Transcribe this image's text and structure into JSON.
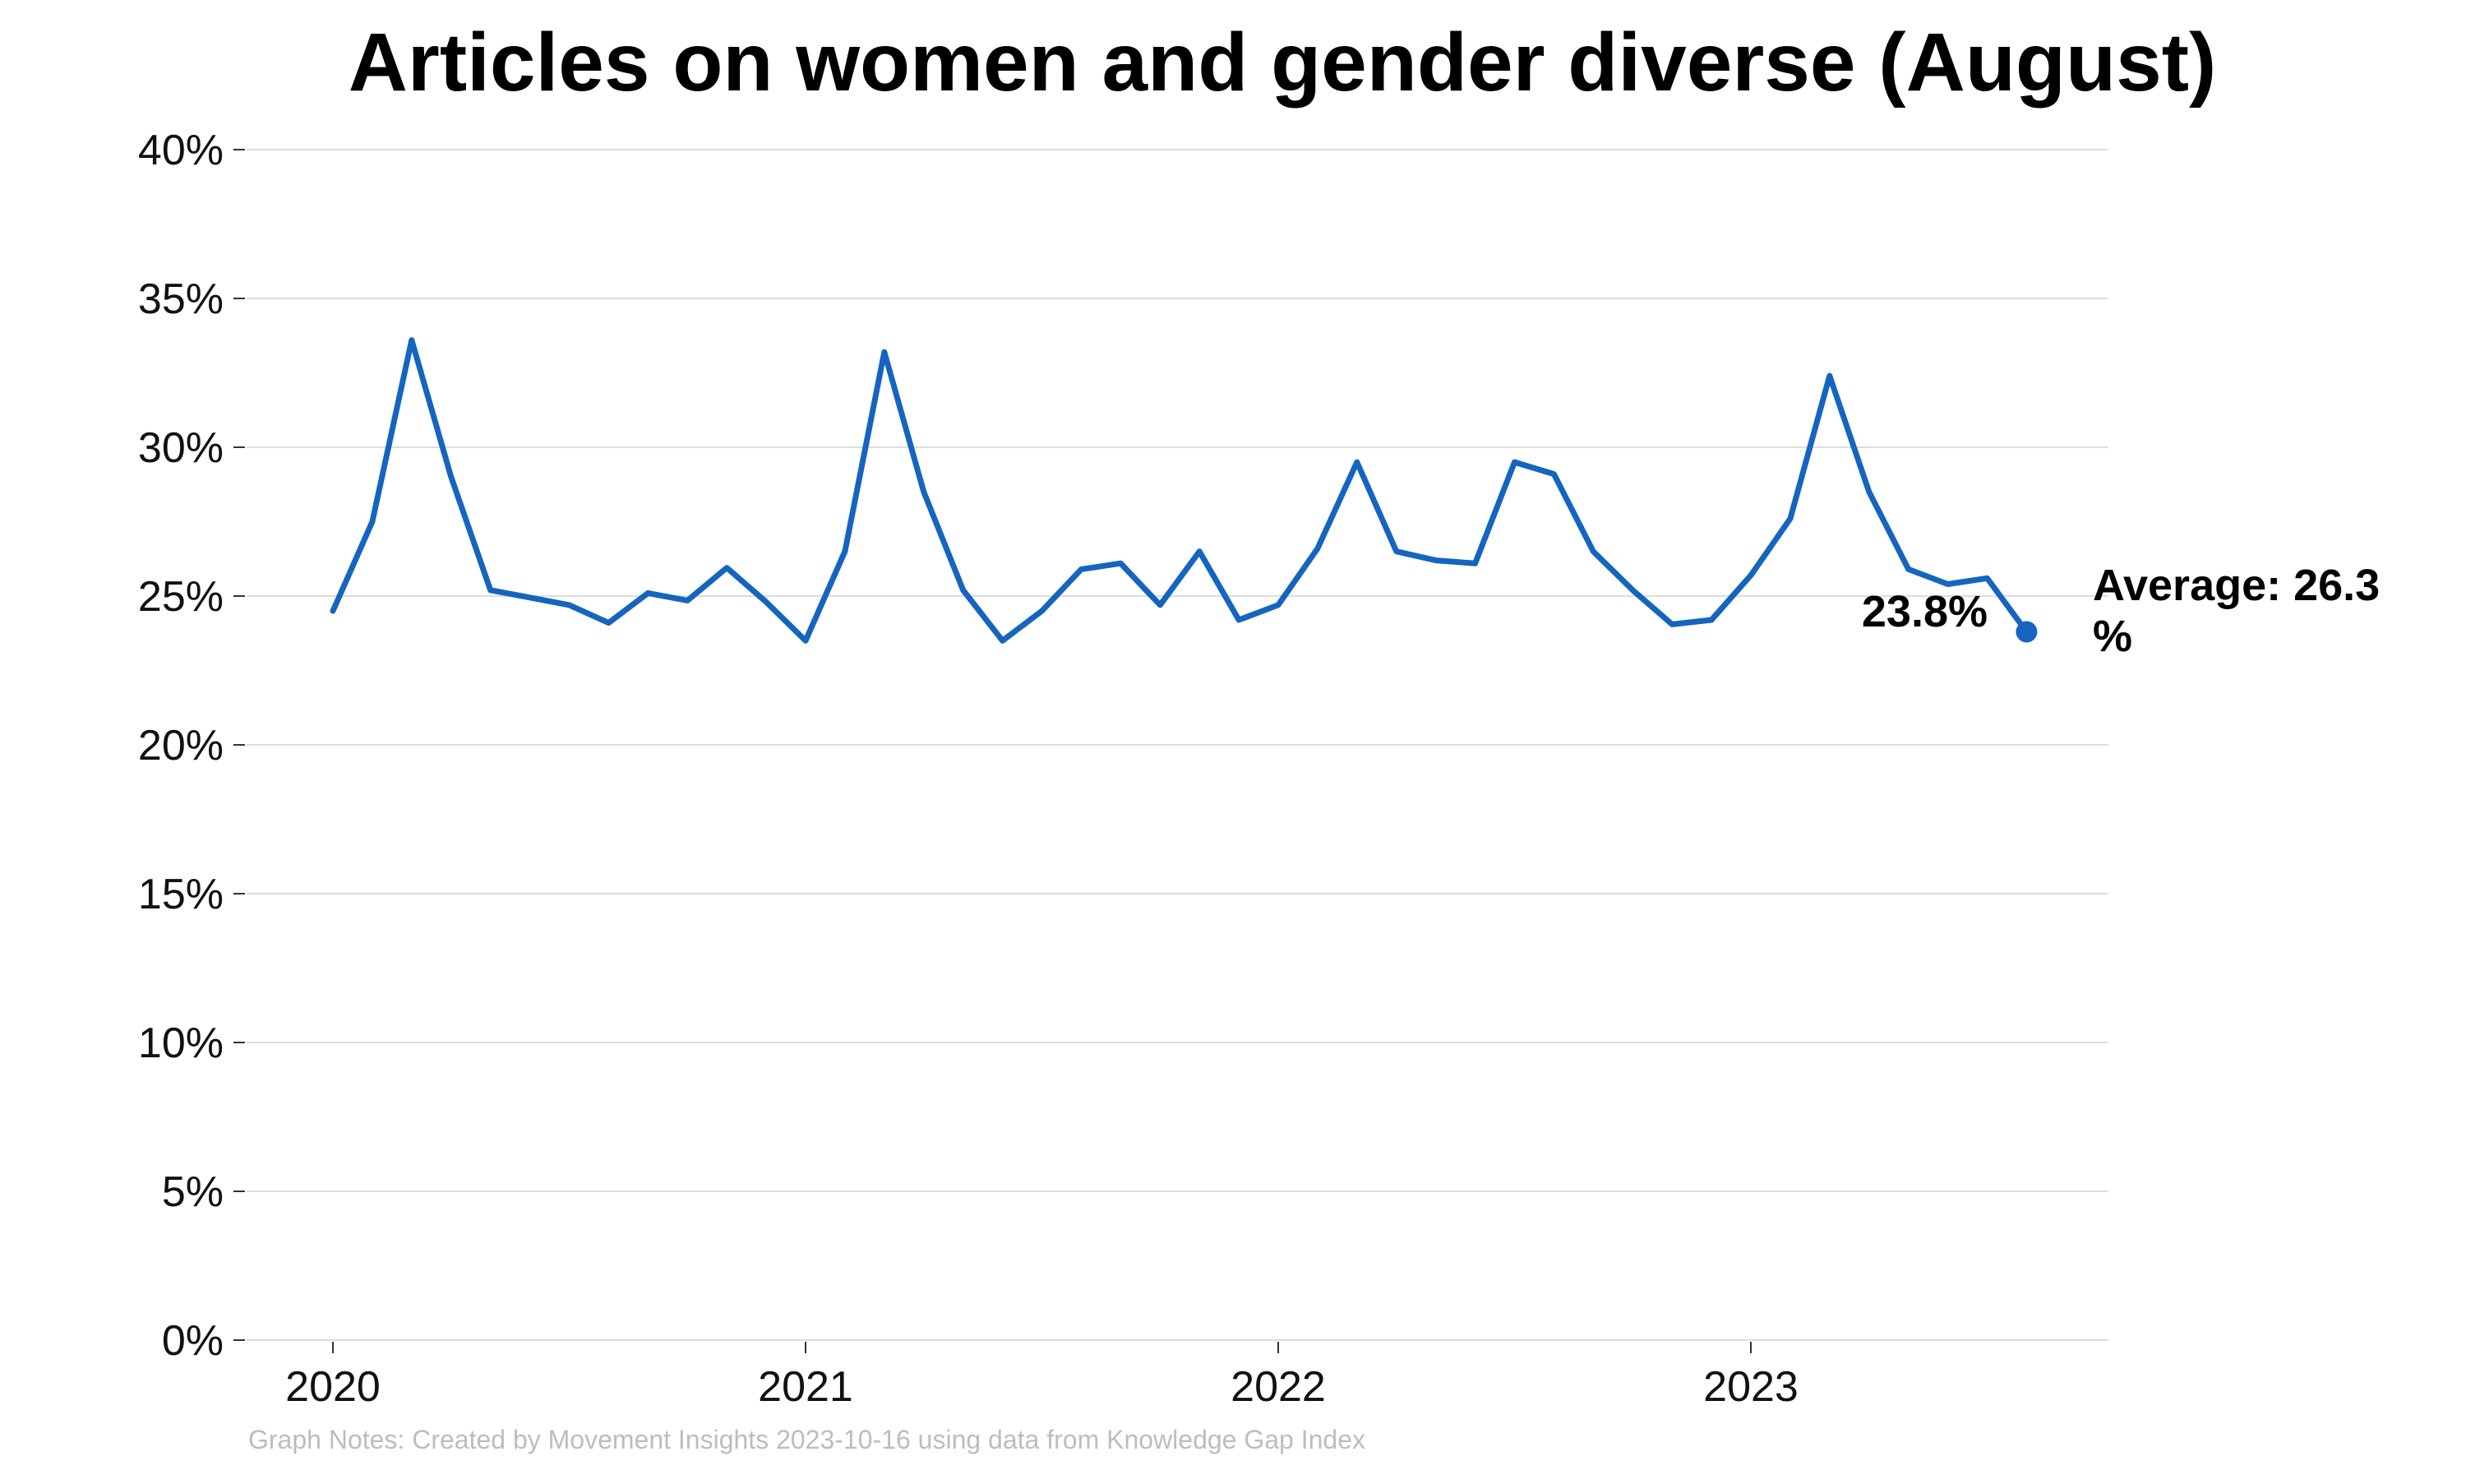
{
  "chart_data": {
    "type": "line",
    "title": "Articles on women and gender diverse (August)",
    "xlabel": "",
    "ylabel": "",
    "x_ticks": [
      "2020",
      "2021",
      "2022",
      "2023"
    ],
    "y_ticks": [
      "0%",
      "5%",
      "10%",
      "15%",
      "20%",
      "25%",
      "30%",
      "35%",
      "40%"
    ],
    "ylim": [
      0,
      40
    ],
    "grid": true,
    "series": [
      {
        "color": "#1565c0",
        "x": [
          "2020-01",
          "2020-02",
          "2020-03",
          "2020-04",
          "2020-05",
          "2020-06",
          "2020-07",
          "2020-08",
          "2020-09",
          "2020-10",
          "2020-11",
          "2020-12",
          "2021-01",
          "2021-02",
          "2021-03",
          "2021-04",
          "2021-05",
          "2021-06",
          "2021-07",
          "2021-08",
          "2021-09",
          "2021-10",
          "2021-11",
          "2021-12",
          "2022-01",
          "2022-02",
          "2022-03",
          "2022-04",
          "2022-05",
          "2022-06",
          "2022-07",
          "2022-08",
          "2022-09",
          "2022-10",
          "2022-11",
          "2022-12",
          "2023-01",
          "2023-02",
          "2023-03",
          "2023-04",
          "2023-05",
          "2023-06",
          "2023-07",
          "2023-08"
        ],
        "values": [
          24.5,
          27.5,
          33.6,
          29.0,
          25.2,
          24.95,
          24.7,
          24.1,
          25.1,
          24.85,
          25.95,
          24.8,
          23.5,
          26.5,
          33.2,
          28.5,
          25.2,
          23.5,
          24.5,
          25.9,
          26.1,
          24.7,
          26.5,
          24.2,
          24.7,
          26.6,
          29.5,
          26.5,
          26.2,
          26.1,
          29.5,
          29.1,
          26.5,
          25.2,
          24.05,
          24.2,
          25.7,
          27.6,
          32.4,
          28.5,
          25.9,
          25.4,
          25.6,
          23.8
        ]
      }
    ],
    "annotations": {
      "last_value": "23.8%",
      "average_label": "Average: 26.3",
      "average_label_cont": "%"
    },
    "note": "Graph Notes: Created by Movement Insights 2023-10-16 using data from Knowledge Gap Index"
  }
}
